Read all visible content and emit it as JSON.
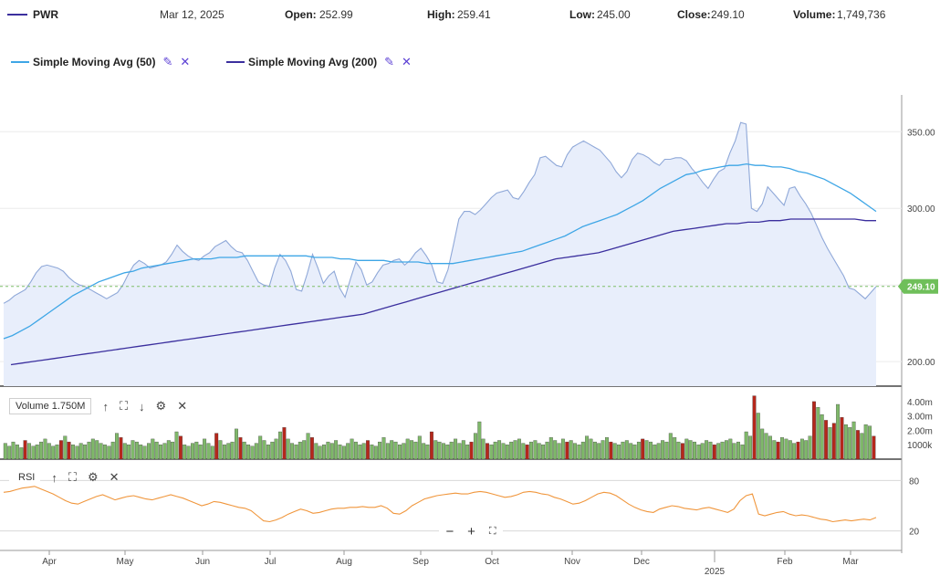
{
  "header": {
    "symbol": "PWR",
    "date": "Mar 12, 2025",
    "open_label": "Open:",
    "open": "252.99",
    "high_label": "High:",
    "high": "259.41",
    "low_label": "Low:",
    "low": "245.00",
    "close_label": "Close:",
    "close": "249.10",
    "volume_label": "Volume:",
    "volume": "1,749,736"
  },
  "legend": {
    "sma50_label": "Simple Moving Avg (50)",
    "sma200_label": "Simple Moving Avg (200)"
  },
  "volume_panel": {
    "label": "Volume 1.750M"
  },
  "rsi_panel": {
    "label": "RSI"
  },
  "colors": {
    "price_line": "#8fa8d8",
    "price_fill": "#e8eefb",
    "sma50": "#3ea6e6",
    "sma200": "#3b2f9e",
    "vol_up": "#7fb86a",
    "vol_down": "#b5271b",
    "rsi": "#f0963c",
    "last_price_badge": "#6fbf5a"
  },
  "icons": {
    "edit": "pencil-icon",
    "remove": "close-icon",
    "up": "arrow-up-icon",
    "expand": "expand-icon",
    "down": "arrow-down-icon",
    "settings": "gear-icon",
    "zoom_out": "minus-icon",
    "zoom_in": "plus-icon",
    "fit": "fit-icon"
  },
  "chart_data": [
    {
      "type": "area",
      "title": "",
      "x_ticks": [
        "Apr",
        "May",
        "Jun",
        "Jul",
        "Aug",
        "Sep",
        "Oct",
        "Nov",
        "Dec",
        "Feb",
        "Mar"
      ],
      "year_label": "2025",
      "y_ticks": [
        200,
        250,
        300,
        350
      ],
      "y_tick_labels": [
        "200.00",
        "300.00",
        "350.00"
      ],
      "ylim": [
        184,
        374
      ],
      "last_value": 249.1,
      "last_value_label": "249.10",
      "series": [
        {
          "name": "PWR",
          "values": [
            238,
            240,
            243,
            245,
            247,
            252,
            258,
            262,
            263,
            262,
            261,
            259,
            255,
            252,
            250,
            249,
            247,
            245,
            243,
            241,
            243,
            245,
            250,
            257,
            263,
            266,
            264,
            261,
            262,
            263,
            265,
            270,
            276,
            272,
            269,
            267,
            266,
            269,
            271,
            275,
            277,
            279,
            275,
            272,
            271,
            266,
            259,
            252,
            250,
            249,
            261,
            270,
            266,
            259,
            247,
            246,
            257,
            270,
            261,
            251,
            256,
            259,
            248,
            242,
            254,
            265,
            260,
            250,
            252,
            258,
            263,
            264,
            266,
            267,
            263,
            266,
            271,
            274,
            269,
            263,
            252,
            251,
            260,
            276,
            293,
            298,
            298,
            296,
            299,
            303,
            307,
            310,
            311,
            312,
            307,
            306,
            311,
            317,
            322,
            333,
            334,
            331,
            328,
            327,
            335,
            340,
            342,
            344,
            342,
            340,
            338,
            334,
            330,
            324,
            320,
            324,
            332,
            336,
            335,
            333,
            330,
            328,
            332,
            332,
            333,
            333,
            331,
            326,
            322,
            317,
            313,
            319,
            324,
            326,
            336,
            344,
            356,
            355,
            300,
            298,
            303,
            314,
            310,
            306,
            302,
            313,
            314,
            308,
            303,
            297,
            289,
            281,
            274,
            268,
            262,
            256,
            248,
            247,
            244,
            241,
            245,
            249
          ]
        },
        {
          "name": "Simple Moving Avg (50)",
          "values": [
            215,
            217,
            220,
            223,
            227,
            231,
            235,
            239,
            243,
            246,
            249,
            252,
            254,
            256,
            258,
            259,
            261,
            262,
            263,
            264,
            265,
            266,
            267,
            267,
            267,
            268,
            268,
            268,
            269,
            269,
            269,
            269,
            269,
            269,
            269,
            269,
            268,
            268,
            268,
            267,
            267,
            266,
            266,
            266,
            266,
            265,
            265,
            265,
            265,
            264,
            264,
            264,
            264,
            265,
            266,
            267,
            268,
            269,
            270,
            271,
            272,
            274,
            276,
            278,
            280,
            282,
            285,
            288,
            290,
            292,
            294,
            296,
            299,
            302,
            305,
            309,
            313,
            316,
            319,
            322,
            323,
            325,
            326,
            327,
            328,
            328,
            329,
            328,
            328,
            327,
            327,
            326,
            324,
            323,
            321,
            319,
            316,
            313,
            310,
            306,
            302,
            298
          ]
        },
        {
          "name": "Simple Moving Avg (200)",
          "values": [
            198,
            199,
            200,
            201,
            202,
            203,
            204,
            205,
            206,
            207,
            208,
            209,
            210,
            211,
            212,
            213,
            214,
            215,
            216,
            217,
            218,
            219,
            220,
            221,
            222,
            223,
            224,
            225,
            226,
            227,
            228,
            229,
            230,
            231,
            233,
            235,
            237,
            239,
            241,
            243,
            245,
            247,
            249,
            251,
            253,
            255,
            257,
            259,
            261,
            263,
            265,
            267,
            268,
            269,
            270,
            271,
            273,
            275,
            277,
            279,
            281,
            283,
            285,
            286,
            287,
            288,
            289,
            290,
            290,
            291,
            291,
            292,
            292,
            293,
            293,
            293,
            293,
            293,
            293,
            293,
            292,
            292
          ]
        }
      ]
    },
    {
      "type": "bar",
      "name": "Volume",
      "y_tick_labels": [
        "1000k",
        "2.00m",
        "3.00m",
        "4.00m"
      ],
      "ylim": [
        0,
        4.5
      ],
      "values": [
        1.1,
        0.9,
        1.2,
        1.0,
        0.8,
        1.3,
        1.1,
        0.9,
        1.0,
        1.2,
        1.4,
        1.1,
        0.9,
        1.0,
        1.3,
        1.6,
        1.2,
        1.0,
        0.9,
        1.1,
        1.0,
        1.2,
        1.4,
        1.3,
        1.1,
        1.0,
        0.9,
        1.2,
        1.8,
        1.5,
        1.1,
        1.0,
        1.3,
        1.2,
        1.0,
        0.9,
        1.1,
        1.4,
        1.2,
        1.0,
        1.1,
        1.3,
        1.2,
        1.9,
        1.6,
        1.0,
        0.9,
        1.1,
        1.2,
        1.0,
        1.4,
        1.1,
        0.9,
        1.8,
        1.3,
        1.0,
        1.1,
        1.2,
        2.1,
        1.5,
        1.2,
        1.0,
        0.9,
        1.1,
        1.6,
        1.3,
        1.0,
        1.2,
        1.4,
        1.9,
        2.2,
        1.4,
        1.1,
        1.0,
        1.2,
        1.3,
        1.8,
        1.5,
        1.1,
        0.9,
        1.0,
        1.2,
        1.1,
        1.3,
        1.0,
        0.9,
        1.1,
        1.4,
        1.2,
        1.0,
        1.1,
        1.3,
        1.0,
        0.9,
        1.2,
        1.5,
        1.1,
        1.3,
        1.2,
        1.0,
        1.1,
        1.4,
        1.3,
        1.2,
        1.6,
        1.1,
        1.0,
        1.9,
        1.3,
        1.2,
        1.1,
        1.0,
        1.2,
        1.4,
        1.1,
        1.3,
        1.0,
        1.2,
        1.8,
        2.6,
        1.4,
        1.1,
        1.0,
        1.2,
        1.3,
        1.1,
        1.0,
        1.2,
        1.3,
        1.4,
        1.1,
        1.0,
        1.2,
        1.3,
        1.1,
        1.0,
        1.2,
        1.5,
        1.3,
        1.1,
        1.4,
        1.2,
        1.3,
        1.1,
        1.0,
        1.2,
        1.6,
        1.4,
        1.2,
        1.1,
        1.3,
        1.5,
        1.2,
        1.1,
        1.0,
        1.2,
        1.3,
        1.1,
        1.0,
        1.2,
        1.4,
        1.3,
        1.2,
        1.0,
        1.1,
        1.3,
        1.2,
        1.8,
        1.5,
        1.2,
        1.1,
        1.4,
        1.3,
        1.2,
        1.0,
        1.1,
        1.3,
        1.2,
        1.0,
        1.1,
        1.2,
        1.3,
        1.4,
        1.1,
        1.2,
        1.0,
        1.9,
        1.6,
        4.4,
        3.2,
        2.1,
        1.8,
        1.6,
        1.3,
        1.2,
        1.5,
        1.4,
        1.3,
        1.1,
        1.2,
        1.4,
        1.3,
        1.6,
        4.0,
        3.6,
        3.1,
        2.7,
        2.2,
        2.5,
        3.8,
        2.9,
        2.4,
        2.2,
        2.6,
        2.0,
        1.8,
        2.4,
        2.3,
        1.6
      ],
      "down_days": [
        5,
        14,
        16,
        29,
        44,
        53,
        59,
        70,
        77,
        91,
        107,
        117,
        121,
        131,
        141,
        152,
        160,
        170,
        178,
        188,
        194,
        199,
        203,
        206,
        208,
        210,
        214,
        218,
        220,
        224
      ]
    },
    {
      "type": "line",
      "name": "RSI",
      "y_tick_labels": [
        "20",
        "80"
      ],
      "ylim": [
        0,
        100
      ],
      "values": [
        66,
        67,
        69,
        71,
        72,
        73,
        70,
        67,
        64,
        60,
        56,
        53,
        52,
        55,
        58,
        61,
        63,
        60,
        57,
        59,
        61,
        62,
        60,
        58,
        57,
        59,
        61,
        63,
        61,
        59,
        56,
        53,
        50,
        52,
        55,
        54,
        52,
        50,
        48,
        47,
        44,
        38,
        32,
        31,
        33,
        36,
        40,
        43,
        46,
        44,
        41,
        42,
        44,
        46,
        47,
        47,
        48,
        48,
        49,
        48,
        48,
        50,
        47,
        41,
        40,
        44,
        50,
        54,
        58,
        60,
        62,
        63,
        64,
        65,
        64,
        64,
        66,
        67,
        66,
        64,
        62,
        60,
        61,
        63,
        66,
        67,
        66,
        64,
        63,
        60,
        58,
        55,
        52,
        53,
        56,
        60,
        64,
        66,
        65,
        62,
        57,
        52,
        48,
        45,
        43,
        42,
        46,
        48,
        50,
        49,
        47,
        46,
        45,
        47,
        48,
        46,
        44,
        42,
        46,
        56,
        62,
        64,
        40,
        38,
        40,
        42,
        43,
        40,
        38,
        39,
        38,
        36,
        34,
        33,
        31,
        32,
        33,
        32,
        33,
        34,
        33,
        36
      ]
    }
  ]
}
